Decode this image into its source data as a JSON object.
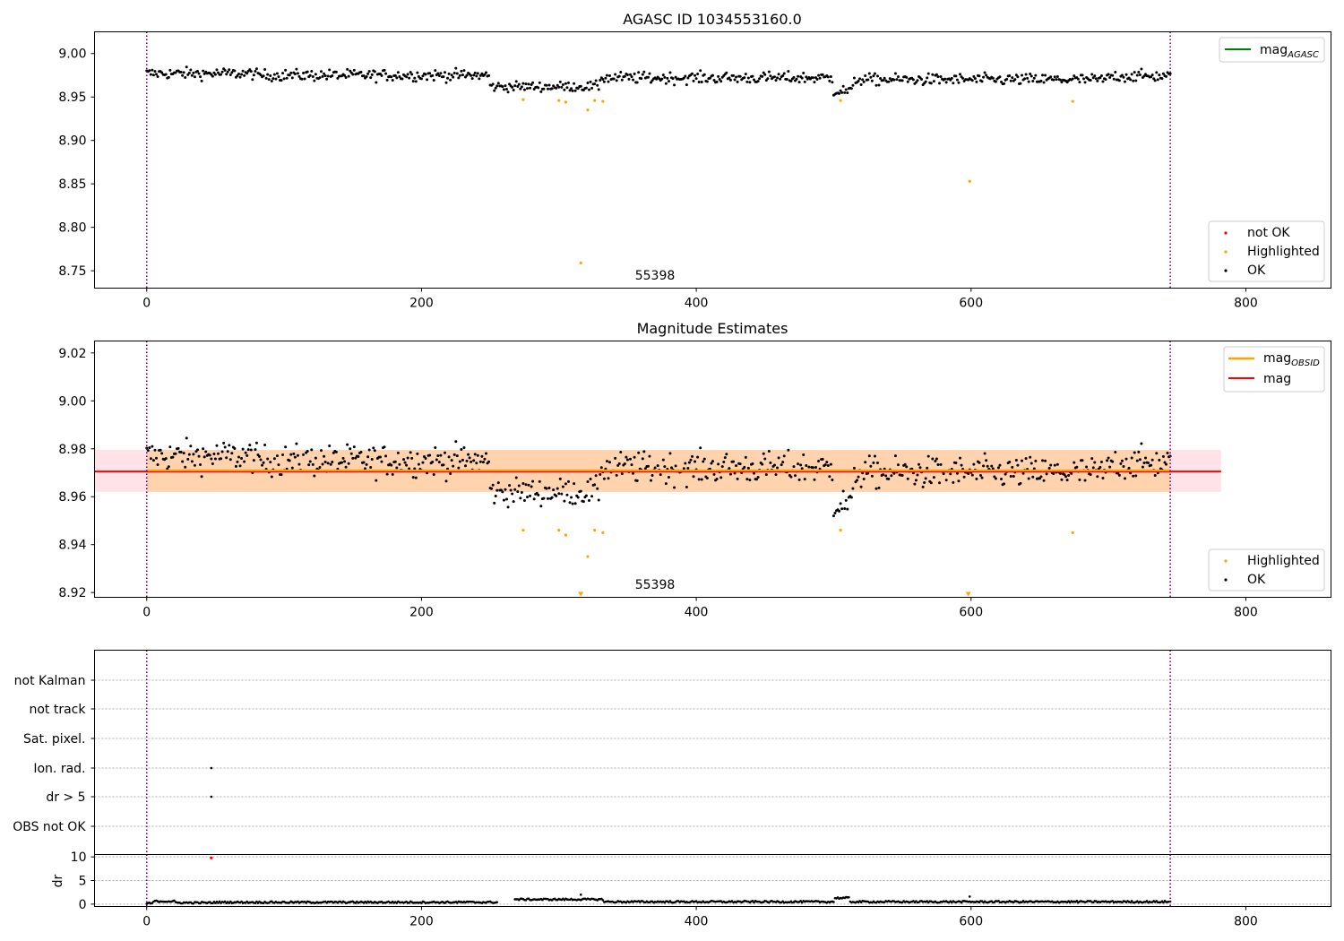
{
  "chart_data": [
    {
      "type": "scatter",
      "title": "AGASC ID 1034553160.0",
      "xlim": [
        -38,
        862
      ],
      "ylim": [
        8.73,
        9.025
      ],
      "xticks": [
        0,
        200,
        400,
        600,
        800
      ],
      "yticks": [
        8.75,
        8.8,
        8.85,
        8.9,
        8.95,
        9.0
      ],
      "ytick_labels": [
        "8.75",
        "8.80",
        "8.85",
        "8.90",
        "8.95",
        "9.00"
      ],
      "vlines": [
        0,
        745
      ],
      "vline_color": "#800080",
      "annotation": "55398",
      "annotation_x": 373,
      "legend_lines": [
        {
          "label": "mag",
          "sub": "AGASC",
          "color": "#008000"
        }
      ],
      "legend_points": [
        {
          "label": "not OK",
          "color": "#ff0000"
        },
        {
          "label": "Highlighted",
          "color": "#ffa500"
        },
        {
          "label": "OK",
          "color": "#000000"
        }
      ],
      "highlighted_points": [
        [
          274,
          8.947
        ],
        [
          300,
          8.946
        ],
        [
          305,
          8.944
        ],
        [
          316,
          8.759
        ],
        [
          321,
          8.935
        ],
        [
          326,
          8.946
        ],
        [
          332,
          8.945
        ],
        [
          505,
          8.946
        ],
        [
          599,
          8.853
        ],
        [
          674,
          8.945
        ]
      ]
    },
    {
      "type": "scatter",
      "title": "Magnitude Estimates",
      "xlim": [
        -38,
        862
      ],
      "ylim": [
        8.918,
        9.025
      ],
      "xticks": [
        0,
        200,
        400,
        600,
        800
      ],
      "yticks": [
        8.92,
        8.94,
        8.96,
        8.98,
        9.0,
        9.02
      ],
      "ytick_labels": [
        "8.92",
        "8.94",
        "8.96",
        "8.98",
        "9.00",
        "9.02"
      ],
      "vlines": [
        0,
        745
      ],
      "vline_color": "#800080",
      "annotation": "55398",
      "annotation_x": 373,
      "mag_value": 8.9705,
      "mag_band": [
        8.962,
        8.9795
      ],
      "mag_obsid_value": 8.971,
      "mag_obsid_band": [
        8.962,
        8.9795
      ],
      "legend_lines": [
        {
          "label": "mag",
          "sub": "OBSID",
          "color": "#ffa500"
        },
        {
          "label": "mag",
          "sub": "",
          "color": "#ff0000"
        }
      ],
      "legend_points": [
        {
          "label": "Highlighted",
          "color": "#ffa500"
        },
        {
          "label": "OK",
          "color": "#000000"
        }
      ],
      "highlighted_points": [
        [
          274,
          8.946
        ],
        [
          300,
          8.946
        ],
        [
          305,
          8.944
        ],
        [
          321,
          8.935
        ],
        [
          326,
          8.946
        ],
        [
          332,
          8.945
        ],
        [
          505,
          8.946
        ],
        [
          674,
          8.945
        ]
      ],
      "offscale_points": [
        316,
        598
      ]
    },
    {
      "type": "scatter",
      "title": "",
      "xlim": [
        -38,
        862
      ],
      "categories": [
        "not Kalman",
        "not track",
        "Sat. pixel.",
        "Ion. rad.",
        "dr > 5",
        "OBS not OK"
      ],
      "flag_points": [
        {
          "category": "Ion. rad.",
          "x": 47
        },
        {
          "category": "dr > 5",
          "x": 47
        }
      ],
      "vlines": [
        0,
        745
      ],
      "vline_color": "#800080"
    },
    {
      "type": "scatter",
      "title": "",
      "ylabel": "dr",
      "xlim": [
        -38,
        862
      ],
      "ylim": [
        -0.5,
        10.5
      ],
      "xticks": [
        0,
        200,
        400,
        600,
        800
      ],
      "yticks": [
        0,
        5,
        10
      ],
      "ytick_labels": [
        "0",
        "5",
        "10"
      ],
      "vlines": [
        0,
        745
      ],
      "vline_color": "#800080",
      "red_points": [
        [
          47,
          9.8
        ]
      ],
      "outlier_points": [
        [
          316,
          2.0
        ],
        [
          599,
          1.6
        ]
      ],
      "segments": [
        {
          "x0": 0,
          "x1": 4,
          "base": 0.15
        },
        {
          "x0": 5,
          "x1": 20,
          "base": 0.6
        },
        {
          "x0": 21,
          "x1": 48,
          "base": 0.3
        },
        {
          "x0": 49,
          "x1": 77,
          "base": 0.4
        },
        {
          "x0": 78,
          "x1": 255,
          "base": 0.4
        },
        {
          "x0": 268,
          "x1": 332,
          "base": 1.0
        },
        {
          "x0": 333,
          "x1": 500,
          "base": 0.5
        },
        {
          "x0": 501,
          "x1": 511,
          "base": 1.3
        },
        {
          "x0": 512,
          "x1": 745,
          "base": 0.5
        }
      ]
    }
  ],
  "axes": {
    "tick_labels_x": [
      "0",
      "200",
      "400",
      "600",
      "800"
    ]
  }
}
